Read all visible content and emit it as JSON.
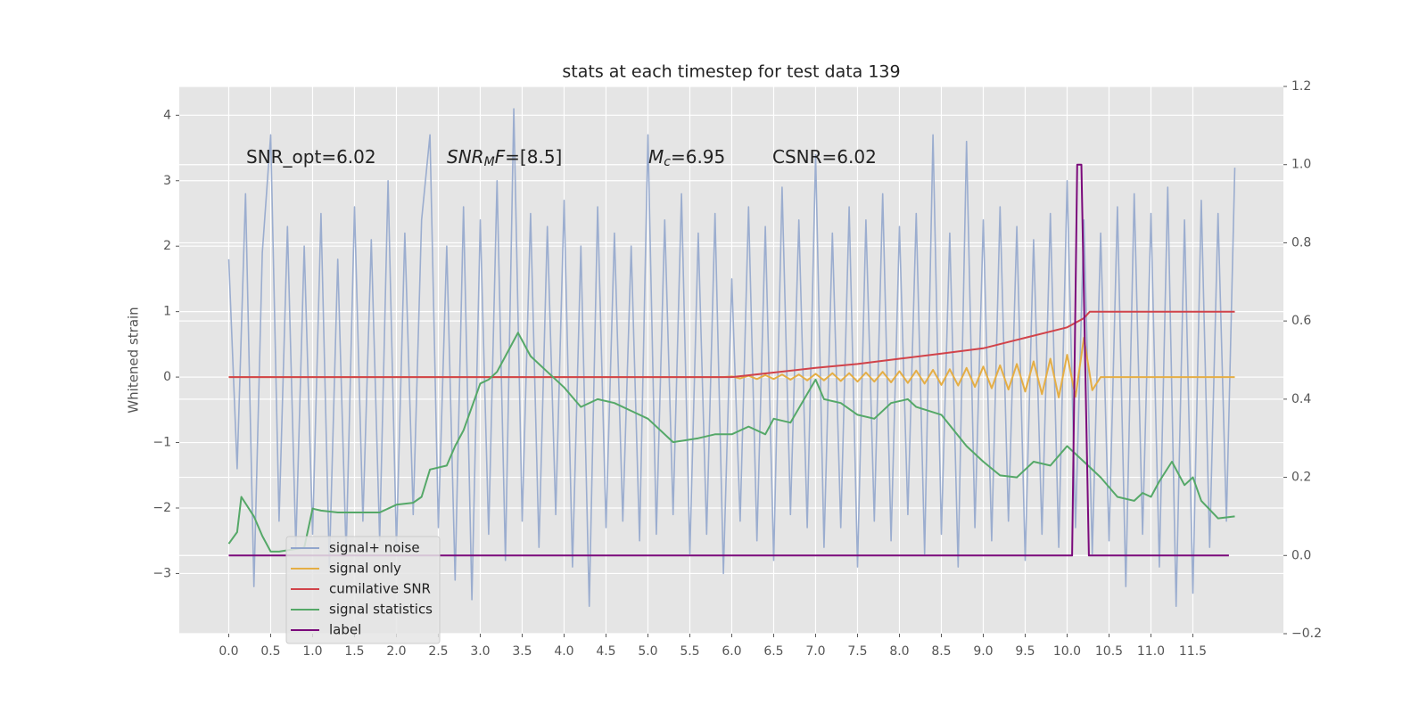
{
  "chart_data": {
    "type": "line",
    "title": "stats at each timestep for test data 139",
    "ylabel": "Whitened strain",
    "grid": true,
    "legend": "lower left",
    "annotations": [
      [
        {
          "text": "SNR_opt=6.02"
        }
      ],
      [
        {
          "text": "SNR",
          "style": "italic"
        },
        {
          "text": "M",
          "style": "sub"
        },
        {
          "text": "F",
          "style": "italic"
        },
        {
          "text": "=[8.5]"
        }
      ],
      [
        {
          "text": "M",
          "style": "italic"
        },
        {
          "text": "c",
          "style": "sub"
        },
        {
          "text": "=6.95"
        }
      ],
      [
        {
          "text": "CSNR=6.02"
        }
      ]
    ],
    "xlim": [
      -0.59,
      12.58
    ],
    "ylim": [
      -3.92,
      4.44
    ],
    "y2lim": [
      -0.2,
      1.2
    ],
    "xticks": [
      {
        "value": 0,
        "label": "0.0"
      },
      0.5,
      {
        "value": 1,
        "label": "1.0"
      },
      1.5,
      {
        "value": 2,
        "label": "2.0"
      },
      2.5,
      {
        "value": 3,
        "label": "3.0"
      },
      3.5,
      {
        "value": 4,
        "label": "4.0"
      },
      4.5,
      {
        "value": 5,
        "label": "5.0"
      },
      5.5,
      {
        "value": 6,
        "label": "6.0"
      },
      6.5,
      {
        "value": 7,
        "label": "7.0"
      },
      7.5,
      {
        "value": 8,
        "label": "8.0"
      },
      8.5,
      {
        "value": 9,
        "label": "9.0"
      },
      9.5,
      {
        "value": 10,
        "label": "10.0"
      },
      10.5,
      {
        "value": 11,
        "label": "11.0"
      },
      11.5
    ],
    "yticks": [
      {
        "value": -3,
        "label": "−3"
      },
      {
        "value": -2,
        "label": "−2"
      },
      {
        "value": -1,
        "label": "−1"
      },
      0,
      1,
      2,
      3,
      4
    ],
    "y2ticks": [
      {
        "value": -0.2,
        "label": "−0.2"
      },
      {
        "value": 0,
        "label": "0.0"
      },
      0.2,
      0.4,
      0.6,
      0.8,
      {
        "value": 1,
        "label": "1.0"
      },
      1.2
    ],
    "x": [
      0,
      0.1,
      0.2,
      0.3,
      0.4,
      0.5,
      0.6,
      0.7,
      0.8,
      0.9,
      1,
      1.1,
      1.2,
      1.3,
      1.4,
      1.5,
      1.6,
      1.7,
      1.8,
      1.9,
      2,
      2.1,
      2.2,
      2.3,
      2.4,
      2.5,
      2.6,
      2.7,
      2.8,
      2.9,
      3,
      3.1,
      3.2,
      3.3,
      3.4,
      3.5,
      3.6,
      3.7,
      3.8,
      3.9,
      4,
      4.1,
      4.2,
      4.3,
      4.4,
      4.5,
      4.6,
      4.7,
      4.8,
      4.9,
      5,
      5.1,
      5.2,
      5.3,
      5.4,
      5.5,
      5.6,
      5.7,
      5.8,
      5.9,
      6,
      6.1,
      6.2,
      6.3,
      6.4,
      6.5,
      6.6,
      6.7,
      6.8,
      6.9,
      7,
      7.1,
      7.2,
      7.3,
      7.4,
      7.5,
      7.6,
      7.7,
      7.8,
      7.9,
      8,
      8.1,
      8.2,
      8.3,
      8.4,
      8.5,
      8.6,
      8.7,
      8.8,
      8.9,
      9,
      9.1,
      9.2,
      9.3,
      9.4,
      9.5,
      9.6,
      9.7,
      9.8,
      9.9,
      10,
      10.1,
      10.2,
      10.3,
      10.4,
      10.5,
      10.6,
      10.7,
      10.8,
      10.9,
      11,
      11.1,
      11.2,
      11.3,
      11.4,
      11.5,
      11.6,
      11.7,
      11.8,
      11.9,
      12
    ],
    "series": [
      {
        "name": "signal+ noise",
        "color": "#92a6cc",
        "values": [
          1.8,
          -1.4,
          2.8,
          -3.2,
          1.9,
          3.7,
          -2.2,
          2.3,
          -2.6,
          2.0,
          -2.4,
          2.5,
          -2.9,
          1.8,
          -2.7,
          2.6,
          -2.2,
          2.1,
          -2.5,
          3.0,
          -2.6,
          2.2,
          -2.1,
          2.4,
          3.7,
          -2.3,
          2.0,
          -3.1,
          2.6,
          -3.4,
          2.4,
          -2.4,
          3.0,
          -2.8,
          4.1,
          -2.2,
          2.5,
          -2.6,
          2.3,
          -2.1,
          2.7,
          -2.9,
          2.0,
          -3.5,
          2.6,
          -2.3,
          2.2,
          -2.2,
          2.0,
          -2.5,
          3.7,
          -2.4,
          2.4,
          -2.1,
          2.8,
          -2.7,
          2.2,
          -2.4,
          2.5,
          -3.0,
          1.5,
          -2.2,
          2.6,
          -2.5,
          2.3,
          -2.8,
          2.9,
          -2.1,
          2.4,
          -2.3,
          3.4,
          -2.6,
          2.2,
          -2.3,
          2.6,
          -2.9,
          2.4,
          -2.2,
          2.8,
          -2.5,
          2.3,
          -2.1,
          2.5,
          -2.7,
          3.7,
          -2.4,
          2.2,
          -2.9,
          3.6,
          -2.3,
          2.4,
          -2.5,
          2.6,
          -2.2,
          2.3,
          -2.8,
          2.1,
          -2.4,
          2.5,
          -2.6,
          3.0,
          -2.3,
          2.4,
          -2.7,
          2.2,
          -2.5,
          2.6,
          -3.2,
          2.8,
          -2.4,
          2.5,
          -2.9,
          2.9,
          -3.5,
          2.4,
          -3.3,
          2.7,
          -2.6,
          2.5,
          -2.2,
          3.2
        ]
      },
      {
        "name": "signal only",
        "color": "#e5ae45",
        "values": [
          0,
          0,
          0,
          0,
          0,
          0,
          0,
          0,
          0,
          0,
          0,
          0,
          0,
          0,
          0,
          0,
          0,
          0,
          0,
          0,
          0,
          0,
          0,
          0,
          0,
          0,
          0,
          0,
          0,
          0,
          0,
          0,
          0,
          0,
          0,
          0,
          0,
          0,
          0,
          0,
          0,
          0,
          0,
          0,
          0,
          0,
          0,
          0,
          0,
          0,
          0,
          0,
          0,
          0,
          0,
          0,
          0,
          0,
          0,
          0,
          0.01,
          -0.02,
          0.02,
          -0.03,
          0.03,
          -0.03,
          0.04,
          -0.04,
          0.04,
          -0.05,
          0.05,
          -0.05,
          0.06,
          -0.06,
          0.06,
          -0.07,
          0.07,
          -0.07,
          0.08,
          -0.08,
          0.09,
          -0.09,
          0.1,
          -0.1,
          0.11,
          -0.12,
          0.12,
          -0.13,
          0.14,
          -0.15,
          0.16,
          -0.17,
          0.18,
          -0.19,
          0.2,
          -0.22,
          0.24,
          -0.26,
          0.28,
          -0.31,
          0.34,
          -0.3,
          0.6,
          -0.2,
          0,
          0,
          0,
          0,
          0,
          0,
          0,
          0,
          0,
          0,
          0,
          0,
          0,
          0,
          0,
          0,
          0
        ]
      },
      {
        "name": "cumilative SNR",
        "color": "#d1434a",
        "x": [
          0,
          6.0,
          6.5,
          7.0,
          7.5,
          8.0,
          8.5,
          9.0,
          9.5,
          10.0,
          10.2,
          10.27,
          12.0
        ],
        "values": [
          0,
          0,
          0.07,
          0.14,
          0.2,
          0.28,
          0.36,
          0.44,
          0.6,
          0.76,
          0.9,
          1.0,
          1.0
        ]
      },
      {
        "name": "signal statistics",
        "color": "#55a868",
        "axis": "y2",
        "x": [
          0,
          0.1,
          0.15,
          0.3,
          0.4,
          0.5,
          0.6,
          0.9,
          1.0,
          1.1,
          1.3,
          1.5,
          1.8,
          2.0,
          2.2,
          2.3,
          2.4,
          2.6,
          2.7,
          2.8,
          2.9,
          3.0,
          3.1,
          3.2,
          3.3,
          3.45,
          3.6,
          3.8,
          4.0,
          4.2,
          4.4,
          4.6,
          4.8,
          5.0,
          5.3,
          5.6,
          5.8,
          6.0,
          6.2,
          6.4,
          6.5,
          6.7,
          7.0,
          7.1,
          7.3,
          7.5,
          7.7,
          7.9,
          8.1,
          8.2,
          8.5,
          8.8,
          9.0,
          9.2,
          9.4,
          9.5,
          9.6,
          9.8,
          10.0,
          10.2,
          10.4,
          10.6,
          10.8,
          10.9,
          11.0,
          11.1,
          11.25,
          11.4,
          11.5,
          11.6,
          11.8,
          12.0
        ],
        "values": [
          0.03,
          0.06,
          0.15,
          0.1,
          0.05,
          0.01,
          0.01,
          0.02,
          0.12,
          0.115,
          0.11,
          0.11,
          0.11,
          0.13,
          0.135,
          0.15,
          0.22,
          0.23,
          0.28,
          0.32,
          0.38,
          0.44,
          0.45,
          0.47,
          0.51,
          0.57,
          0.51,
          0.47,
          0.43,
          0.38,
          0.4,
          0.39,
          0.37,
          0.35,
          0.29,
          0.3,
          0.31,
          0.31,
          0.33,
          0.31,
          0.35,
          0.34,
          0.45,
          0.4,
          0.39,
          0.36,
          0.35,
          0.39,
          0.4,
          0.38,
          0.36,
          0.28,
          0.24,
          0.205,
          0.2,
          0.22,
          0.24,
          0.23,
          0.28,
          0.24,
          0.2,
          0.15,
          0.14,
          0.16,
          0.15,
          0.19,
          0.24,
          0.18,
          0.2,
          0.14,
          0.095,
          0.1
        ]
      },
      {
        "name": "label",
        "color": "#7b0a7b",
        "axis": "y2",
        "x": [
          0,
          10.06,
          10.12,
          10.17,
          10.26,
          11.93
        ],
        "values": [
          0,
          0,
          1,
          1,
          0,
          0
        ]
      }
    ]
  }
}
